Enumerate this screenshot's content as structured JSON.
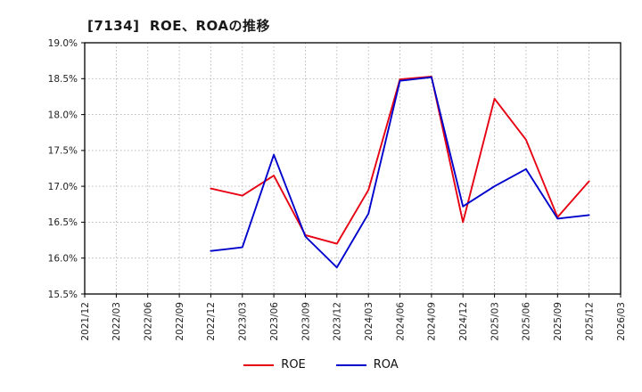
{
  "chart_data": {
    "type": "line",
    "title": "[7134]  ROE、ROAの推移",
    "xlabel": "",
    "ylabel": "",
    "ylim": [
      15.5,
      19.0
    ],
    "y_ticks": [
      15.5,
      16.0,
      16.5,
      17.0,
      17.5,
      18.0,
      18.5,
      19.0
    ],
    "grid": "dotted",
    "legend_position": "bottom-center",
    "x_labels": [
      "2021/12",
      "2022/03",
      "2022/06",
      "2022/09",
      "2022/12",
      "2023/03",
      "2023/06",
      "2023/09",
      "2023/12",
      "2024/03",
      "2024/06",
      "2024/09",
      "2024/12",
      "2025/03",
      "2025/06",
      "2025/09",
      "2025/12",
      "2026/03"
    ],
    "series": [
      {
        "name": "ROE",
        "color": "#e60012",
        "values": [
          null,
          null,
          null,
          null,
          16.97,
          16.87,
          17.15,
          16.32,
          16.2,
          16.95,
          18.49,
          18.53,
          16.5,
          18.22,
          17.65,
          16.57,
          17.07,
          null
        ]
      },
      {
        "name": "ROA",
        "color": "#0000cc",
        "values": [
          null,
          null,
          null,
          null,
          16.1,
          16.15,
          17.44,
          16.3,
          15.87,
          16.62,
          18.47,
          18.52,
          16.72,
          17.0,
          17.24,
          16.55,
          16.6,
          null
        ]
      }
    ]
  }
}
